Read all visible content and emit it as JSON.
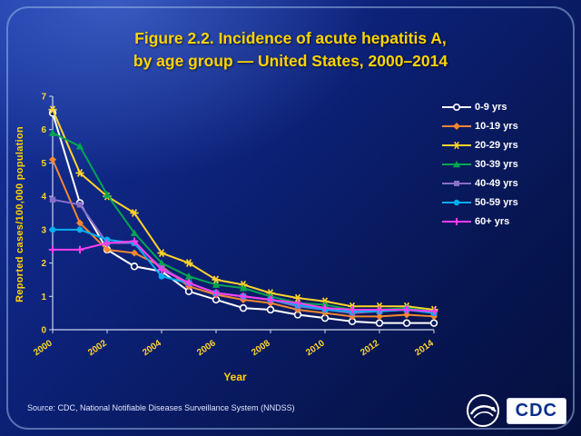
{
  "header": {
    "title_line1": "Figure 2.2. Incidence of acute hepatitis A,",
    "title_line2": "by age group — United States, 2000–2014"
  },
  "source": {
    "text": "Source: CDC, National Notifiable Diseases Surveillance System (NNDSS)"
  },
  "logo": {
    "hhs_icon": "hhs-eagle-icon",
    "cdc_label": "CDC"
  },
  "colors": {
    "background_dark": "#071653",
    "background_light": "#16339e",
    "title_yellow": "#ffd400",
    "axis_line": "#d0d8ee",
    "tick_label_yellow": "#ffd42a",
    "legend_text": "#ffffff"
  },
  "chart_data": {
    "type": "line",
    "title": "Figure 2.2. Incidence of acute hepatitis A, by age group — United States, 2000–2014",
    "xlabel": "Year",
    "ylabel": "Reported cases/100,000 population",
    "x": [
      2000,
      2001,
      2002,
      2003,
      2004,
      2005,
      2006,
      2007,
      2008,
      2009,
      2010,
      2011,
      2012,
      2013,
      2014
    ],
    "x_tick_labels": [
      "2000",
      "2002",
      "2004",
      "2006",
      "2008",
      "2010",
      "2012",
      "2014"
    ],
    "ylim": [
      0,
      7
    ],
    "yticks": [
      0,
      1,
      2,
      3,
      4,
      5,
      6,
      7
    ],
    "grid": false,
    "legend_position": "right",
    "series": [
      {
        "name": "0-9 yrs",
        "color": "#ffffff",
        "marker": "circle-open",
        "values": [
          6.5,
          3.8,
          2.4,
          1.9,
          1.75,
          1.15,
          0.9,
          0.65,
          0.6,
          0.45,
          0.35,
          0.25,
          0.2,
          0.2,
          0.2
        ]
      },
      {
        "name": "10-19 yrs",
        "color": "#f5872e",
        "marker": "diamond",
        "values": [
          5.1,
          3.2,
          2.4,
          2.3,
          1.9,
          1.3,
          1.05,
          0.9,
          0.8,
          0.6,
          0.5,
          0.4,
          0.4,
          0.45,
          0.4
        ]
      },
      {
        "name": "20-29 yrs",
        "color": "#ffd42a",
        "marker": "star",
        "values": [
          6.6,
          4.7,
          4.0,
          3.5,
          2.3,
          2.0,
          1.5,
          1.35,
          1.1,
          0.95,
          0.85,
          0.7,
          0.7,
          0.7,
          0.6
        ]
      },
      {
        "name": "30-39 yrs",
        "color": "#00a550",
        "marker": "triangle-up",
        "values": [
          5.9,
          5.5,
          4.05,
          2.9,
          2.0,
          1.6,
          1.35,
          1.25,
          1.0,
          0.8,
          0.75,
          0.6,
          0.6,
          0.65,
          0.55
        ]
      },
      {
        "name": "40-49 yrs",
        "color": "#8a6fc8",
        "marker": "square",
        "values": [
          3.9,
          3.75,
          2.6,
          2.6,
          1.85,
          1.4,
          1.1,
          1.0,
          0.9,
          0.7,
          0.6,
          0.5,
          0.55,
          0.6,
          0.5
        ]
      },
      {
        "name": "50-59 yrs",
        "color": "#00aeef",
        "marker": "circle",
        "values": [
          3.0,
          3.0,
          2.7,
          2.6,
          1.6,
          1.4,
          1.1,
          1.0,
          0.9,
          0.75,
          0.6,
          0.55,
          0.55,
          0.6,
          0.5
        ]
      },
      {
        "name": "60+ yrs",
        "color": "#ff3df0",
        "marker": "plus",
        "values": [
          2.4,
          2.4,
          2.6,
          2.65,
          1.8,
          1.4,
          1.1,
          1.0,
          0.9,
          0.8,
          0.65,
          0.6,
          0.6,
          0.6,
          0.55
        ]
      }
    ]
  }
}
